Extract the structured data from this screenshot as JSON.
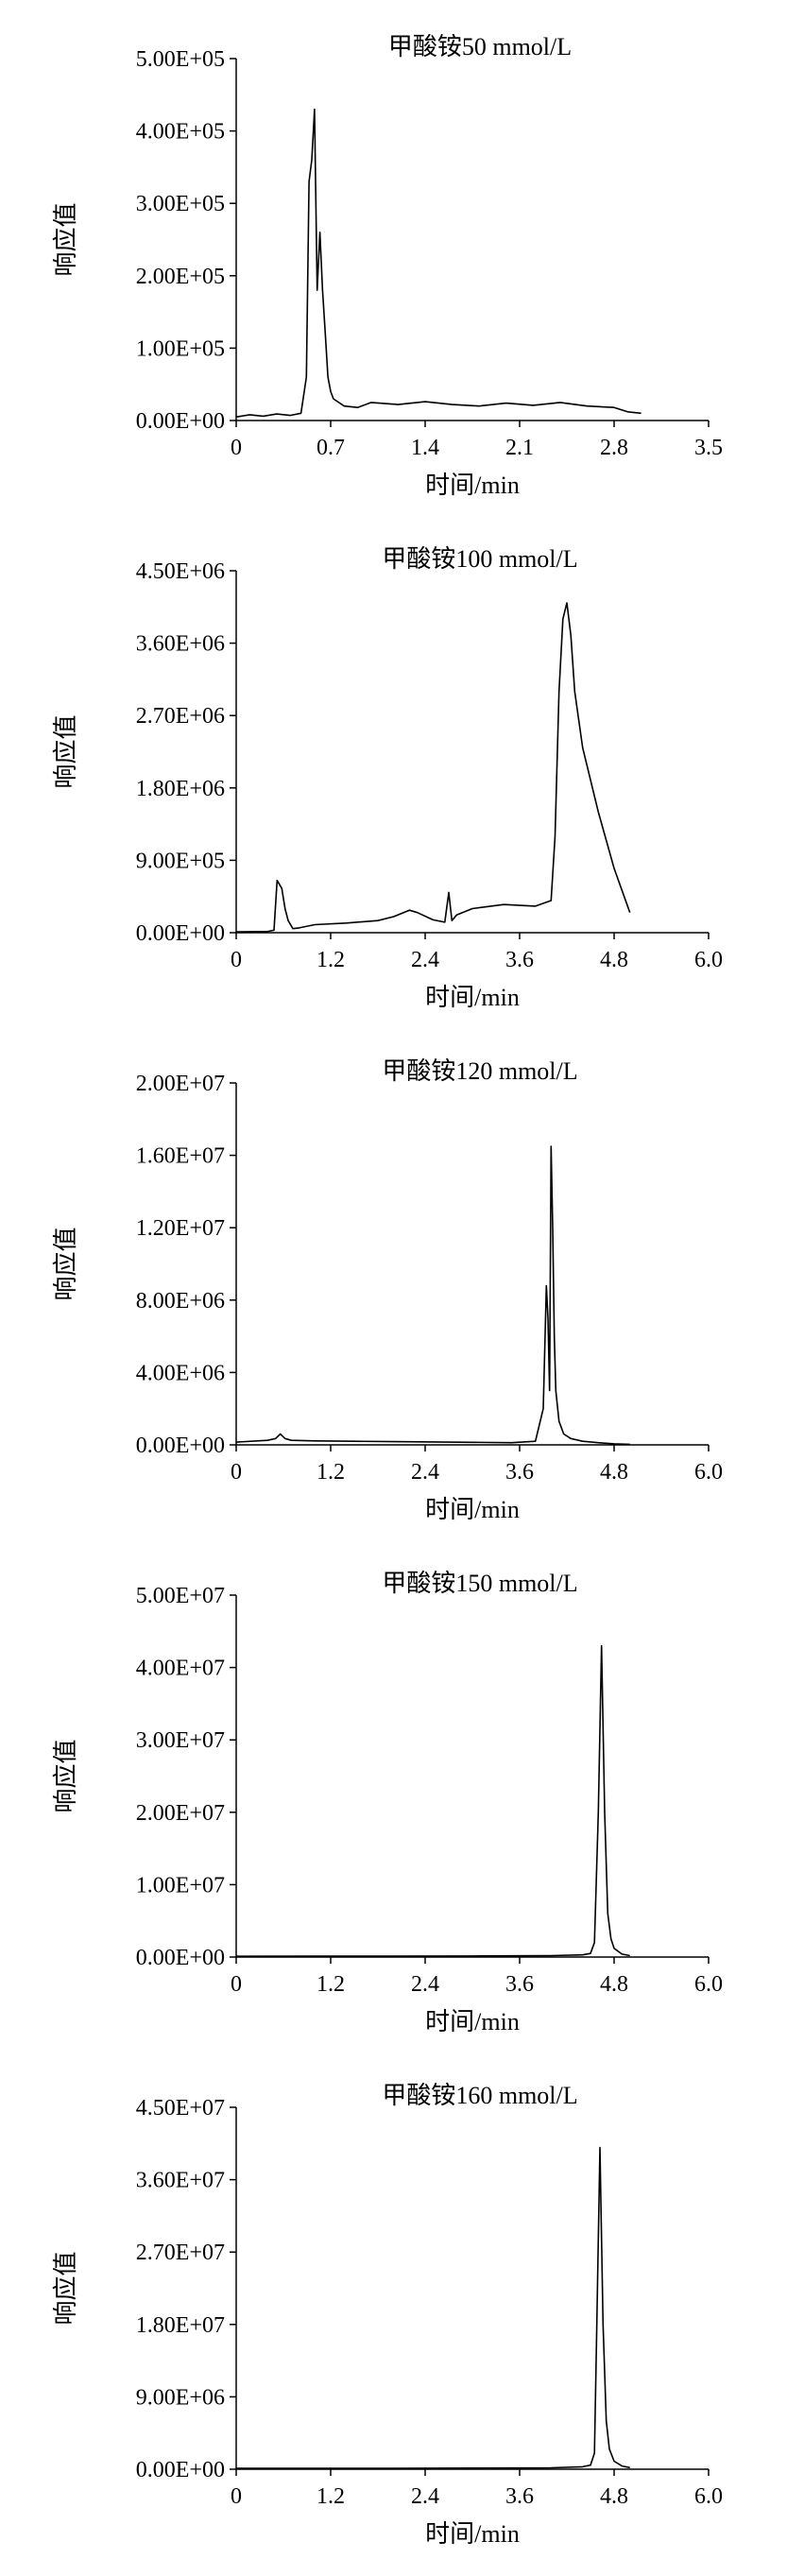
{
  "chart_data": [
    {
      "type": "line",
      "title": "甲酸铵50 mmol/L",
      "xlabel": "时间/min",
      "ylabel": "响应值",
      "xlim": [
        0,
        3.5
      ],
      "ylim": [
        0,
        500000
      ],
      "xticks": [
        0,
        0.7,
        1.4,
        2.1,
        2.8,
        3.5
      ],
      "xtick_labels": [
        "0",
        "0.7",
        "1.4",
        "2.1",
        "2.8",
        "3.5"
      ],
      "yticks": [
        0,
        100000,
        200000,
        300000,
        400000,
        500000
      ],
      "ytick_labels": [
        "0.00E+00",
        "1.00E+05",
        "2.00E+05",
        "3.00E+05",
        "4.00E+05",
        "5.00E+05"
      ],
      "grid": false,
      "series": [
        {
          "x": [
            0,
            0.1,
            0.2,
            0.3,
            0.4,
            0.48,
            0.52,
            0.54,
            0.56,
            0.58,
            0.6,
            0.62,
            0.64,
            0.66,
            0.68,
            0.7,
            0.72,
            0.76,
            0.8,
            0.9,
            1.0,
            1.2,
            1.4,
            1.6,
            1.8,
            2.0,
            2.2,
            2.4,
            2.6,
            2.8,
            2.9,
            3.0
          ],
          "y": [
            5000,
            8000,
            6000,
            9000,
            7000,
            10000,
            60000,
            330000,
            360000,
            430000,
            180000,
            260000,
            180000,
            120000,
            60000,
            40000,
            30000,
            25000,
            20000,
            18000,
            25000,
            22000,
            26000,
            22000,
            20000,
            24000,
            21000,
            25000,
            20000,
            18000,
            12000,
            10000
          ]
        }
      ]
    },
    {
      "type": "line",
      "title": "甲酸铵100 mmol/L",
      "xlabel": "时间/min",
      "ylabel": "响应值",
      "xlim": [
        0,
        6.0
      ],
      "ylim": [
        0,
        4500000
      ],
      "xticks": [
        0,
        1.2,
        2.4,
        3.6,
        4.8,
        6.0
      ],
      "xtick_labels": [
        "0",
        "1.2",
        "2.4",
        "3.6",
        "4.8",
        "6.0"
      ],
      "yticks": [
        0,
        900000,
        1800000,
        2700000,
        3600000,
        4500000
      ],
      "ytick_labels": [
        "0.00E+00",
        "9.00E+05",
        "1.80E+06",
        "2.70E+06",
        "3.60E+06",
        "4.50E+06"
      ],
      "grid": false,
      "series": [
        {
          "x": [
            0,
            0.4,
            0.48,
            0.52,
            0.58,
            0.62,
            0.66,
            0.72,
            0.8,
            1.0,
            1.4,
            1.8,
            2.0,
            2.2,
            2.3,
            2.5,
            2.65,
            2.7,
            2.74,
            2.8,
            3.0,
            3.4,
            3.8,
            4.0,
            4.05,
            4.1,
            4.15,
            4.2,
            4.25,
            4.3,
            4.4,
            4.6,
            4.8,
            5.0
          ],
          "y": [
            10000,
            15000,
            30000,
            650000,
            550000,
            300000,
            150000,
            50000,
            60000,
            100000,
            120000,
            150000,
            200000,
            280000,
            250000,
            160000,
            130000,
            500000,
            150000,
            220000,
            300000,
            350000,
            330000,
            400000,
            1200000,
            3000000,
            3900000,
            4100000,
            3700000,
            3000000,
            2300000,
            1500000,
            800000,
            250000
          ]
        }
      ]
    },
    {
      "type": "line",
      "title": "甲酸铵120 mmol/L",
      "xlabel": "时间/min",
      "ylabel": "响应值",
      "xlim": [
        0,
        6.0
      ],
      "ylim": [
        0,
        20000000
      ],
      "xticks": [
        0,
        1.2,
        2.4,
        3.6,
        4.8,
        6.0
      ],
      "xtick_labels": [
        "0",
        "1.2",
        "2.4",
        "3.6",
        "4.8",
        "6.0"
      ],
      "yticks": [
        0,
        4000000,
        8000000,
        12000000,
        16000000,
        20000000
      ],
      "ytick_labels": [
        "0.00E+00",
        "4.00E+06",
        "8.00E+06",
        "1.20E+07",
        "1.60E+07",
        "2.00E+07"
      ],
      "grid": false,
      "series": [
        {
          "x": [
            0,
            0.4,
            0.5,
            0.56,
            0.62,
            0.7,
            1.0,
            1.5,
            2.0,
            2.5,
            3.0,
            3.5,
            3.8,
            3.9,
            3.94,
            3.96,
            3.98,
            4.0,
            4.02,
            4.04,
            4.06,
            4.1,
            4.16,
            4.25,
            4.4,
            4.6,
            4.8,
            5.0
          ],
          "y": [
            150000,
            250000,
            350000,
            600000,
            350000,
            250000,
            220000,
            200000,
            180000,
            160000,
            140000,
            120000,
            200000,
            2000000,
            8800000,
            7000000,
            3000000,
            16500000,
            12000000,
            6000000,
            3000000,
            1300000,
            600000,
            350000,
            200000,
            120000,
            60000,
            30000
          ]
        }
      ]
    },
    {
      "type": "line",
      "title": "甲酸铵150 mmol/L",
      "xlabel": "时间/min",
      "ylabel": "响应值",
      "xlim": [
        0,
        6.0
      ],
      "ylim": [
        0,
        50000000
      ],
      "xticks": [
        0,
        1.2,
        2.4,
        3.6,
        4.8,
        6.0
      ],
      "xtick_labels": [
        "0",
        "1.2",
        "2.4",
        "3.6",
        "4.8",
        "6.0"
      ],
      "yticks": [
        0,
        10000000,
        20000000,
        30000000,
        40000000,
        50000000
      ],
      "ytick_labels": [
        "0.00E+00",
        "1.00E+07",
        "2.00E+07",
        "3.00E+07",
        "4.00E+07",
        "5.00E+07"
      ],
      "grid": false,
      "series": [
        {
          "x": [
            0,
            1.0,
            2.0,
            3.0,
            4.0,
            4.4,
            4.5,
            4.55,
            4.6,
            4.64,
            4.68,
            4.72,
            4.76,
            4.8,
            4.9,
            5.0
          ],
          "y": [
            100000,
            120000,
            130000,
            150000,
            200000,
            300000,
            500000,
            2000000,
            20000000,
            43000000,
            20000000,
            6000000,
            2500000,
            1200000,
            400000,
            200000
          ]
        }
      ]
    },
    {
      "type": "line",
      "title": "甲酸铵160 mmol/L",
      "xlabel": "时间/min",
      "ylabel": "响应值",
      "xlim": [
        0,
        6.0
      ],
      "ylim": [
        0,
        45000000
      ],
      "xticks": [
        0,
        1.2,
        2.4,
        3.6,
        4.8,
        6.0
      ],
      "xtick_labels": [
        "0",
        "1.2",
        "2.4",
        "3.6",
        "4.8",
        "6.0"
      ],
      "yticks": [
        0,
        9000000,
        18000000,
        27000000,
        36000000,
        45000000
      ],
      "ytick_labels": [
        "0.00E+00",
        "9.00E+06",
        "1.80E+07",
        "2.70E+07",
        "3.60E+07",
        "4.50E+07"
      ],
      "grid": false,
      "series": [
        {
          "x": [
            0,
            1.0,
            2.0,
            3.0,
            4.0,
            4.4,
            4.5,
            4.55,
            4.58,
            4.62,
            4.66,
            4.7,
            4.74,
            4.8,
            4.9,
            5.0
          ],
          "y": [
            100000,
            110000,
            120000,
            140000,
            180000,
            300000,
            500000,
            2000000,
            18000000,
            40000000,
            18000000,
            6000000,
            2500000,
            1000000,
            400000,
            200000
          ]
        }
      ]
    }
  ]
}
